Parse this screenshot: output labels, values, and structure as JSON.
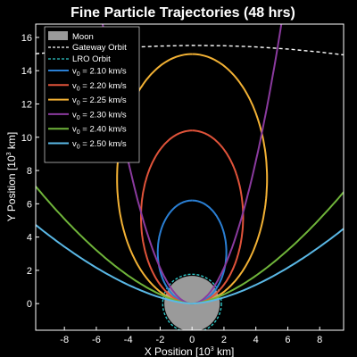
{
  "chart_data": {
    "type": "line",
    "title": "Fine Particle Trajectories (48 hrs)",
    "xlabel": "X Position [10",
    "xlabel_sup": "3",
    "xlabel_unit": " km]",
    "ylabel": "Y Position [10",
    "ylabel_sup": "3",
    "ylabel_unit": " km]",
    "xlim": [
      -9.8,
      9.5
    ],
    "ylim": [
      -1.6,
      16.8
    ],
    "xticks": [
      -8,
      -6,
      -4,
      -2,
      0,
      2,
      4,
      6,
      8
    ],
    "yticks": [
      0,
      2,
      4,
      6,
      8,
      10,
      12,
      14,
      16
    ],
    "grid": false,
    "legend_position": "top-left",
    "background": "#000000",
    "moon": {
      "label": "Moon",
      "center": [
        0,
        0
      ],
      "radius": 1.737,
      "color": "#9a9a9a"
    },
    "lro_orbit": {
      "label": "LRO Orbit",
      "radius": 1.84,
      "color": "#2fc6c6"
    },
    "gateway_orbit": {
      "label": "Gateway Orbit",
      "color": "#ffffff",
      "x": [
        -9.8,
        -8,
        -6,
        -4,
        -2,
        0,
        2,
        4,
        6,
        8,
        9.5
      ],
      "y": [
        15.02,
        15.15,
        15.28,
        15.4,
        15.48,
        15.52,
        15.5,
        15.43,
        15.3,
        15.12,
        14.95
      ]
    },
    "series": [
      {
        "name": "v_0 = 2.10 km/s",
        "label_prefix": "v",
        "label_sub": "0",
        "label_suffix": " = 2.10 km/s",
        "color": "#2a7fd4",
        "kind": "ellipse",
        "apoapsis": 6.2,
        "half_width": 2.15
      },
      {
        "name": "v_0 = 2.20 km/s",
        "label_prefix": "v",
        "label_sub": "0",
        "label_suffix": " = 2.20 km/s",
        "color": "#e0533a",
        "kind": "ellipse",
        "apoapsis": 10.4,
        "half_width": 3.2
      },
      {
        "name": "v_0 = 2.25 km/s",
        "label_prefix": "v",
        "label_sub": "0",
        "label_suffix": " = 2.25 km/s",
        "color": "#f2b134",
        "kind": "ellipse",
        "apoapsis": 15.0,
        "half_width": 4.7
      },
      {
        "name": "v_0 = 2.30 km/s",
        "label_prefix": "v",
        "label_sub": "0",
        "label_suffix": " = 2.30 km/s",
        "color": "#8a3a9e",
        "kind": "open",
        "width_at_top": 5.6
      },
      {
        "name": "v_0 = 2.40 km/s",
        "label_prefix": "v",
        "label_sub": "0",
        "label_suffix": " = 2.40 km/s",
        "color": "#6fb43a",
        "kind": "open",
        "y_at_edge": 6.7
      },
      {
        "name": "v_0 = 2.50 km/s",
        "label_prefix": "v",
        "label_sub": "0",
        "label_suffix": " = 2.50 km/s",
        "color": "#5ab8e6",
        "kind": "open",
        "y_at_edge": 4.5
      }
    ]
  }
}
